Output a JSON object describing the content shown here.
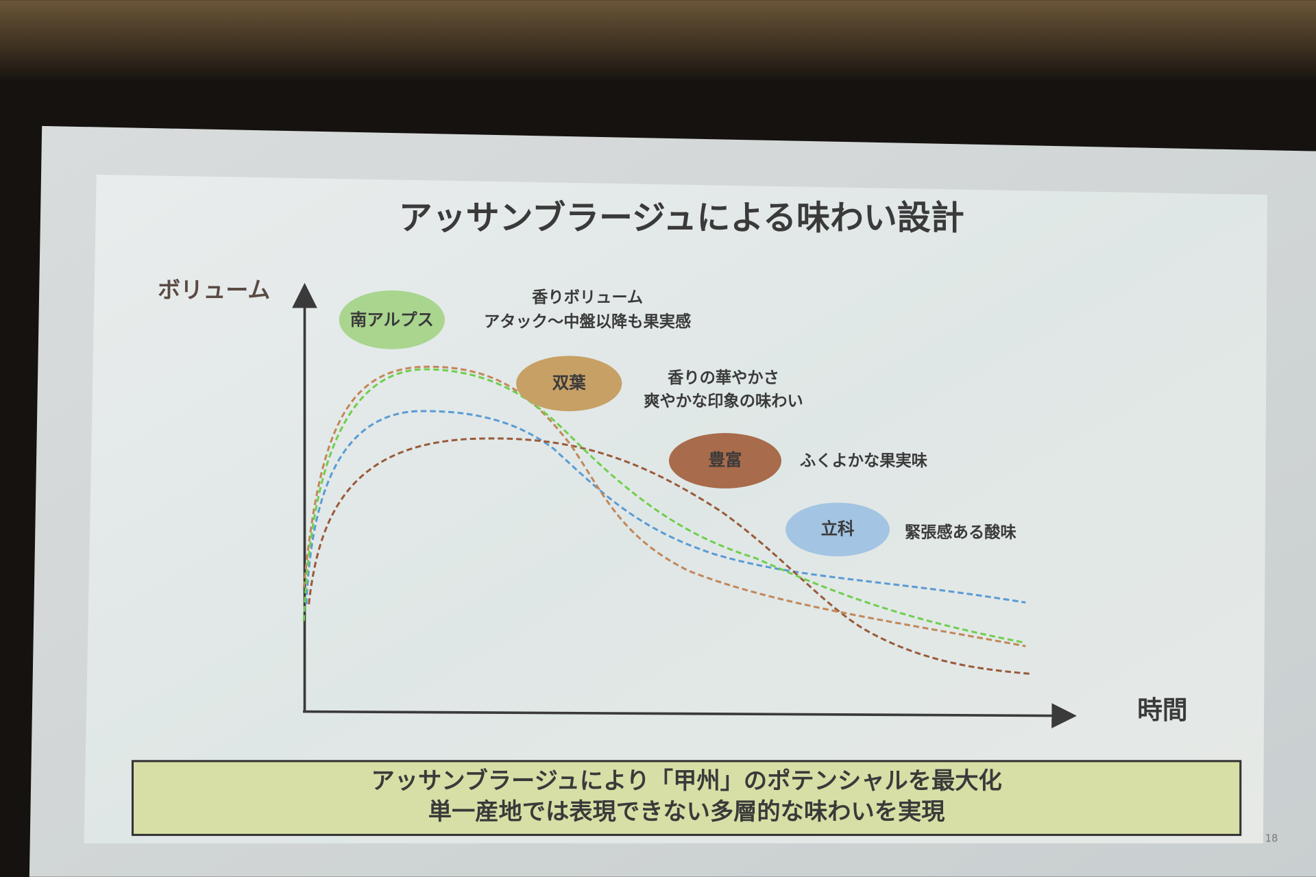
{
  "slide": {
    "title": "アッサンブラージュによる味わい設計",
    "y_axis_label": "ボリューム",
    "x_axis_label": "時間",
    "varieties": [
      {
        "name": "南アルプス",
        "notes": [
          "香りボリューム",
          "アタック～中盤以降も果実感"
        ]
      },
      {
        "name": "双葉",
        "notes": [
          "香りの華やかさ",
          "爽やかな印象の味わい"
        ]
      },
      {
        "name": "豊富",
        "notes": [
          "ふくよかな果実味"
        ]
      },
      {
        "name": "立科",
        "notes": [
          "緊張感ある酸味"
        ]
      }
    ],
    "conclusion": [
      "アッサンブラージュにより「甲州」のポテンシャルを最大化",
      "単一産地では表現できない多層的な味わいを実現"
    ],
    "page_number": "18"
  }
}
